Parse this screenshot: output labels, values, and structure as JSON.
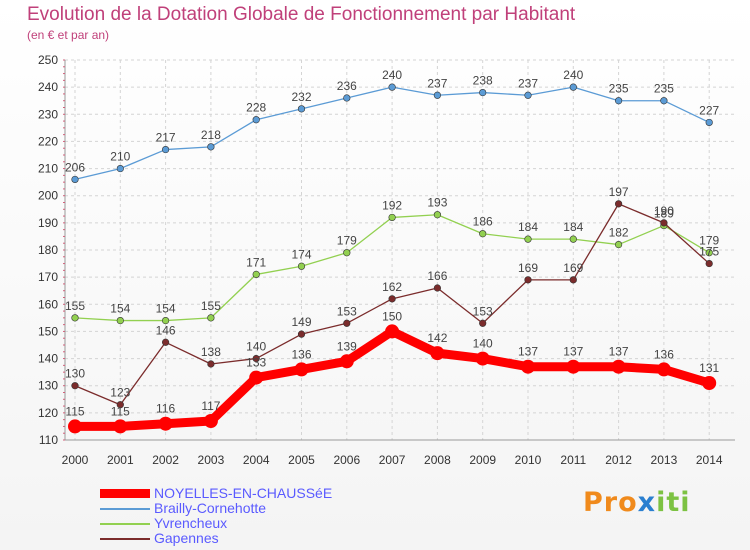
{
  "title": "Evolution de la Dotation Globale de Fonctionnement par Habitant",
  "subtitle": "(en € et par an)",
  "logo": {
    "p1": "Pro",
    "p2": "x",
    "p3": "iti"
  },
  "colors": {
    "text": "#c0407a",
    "grid": "#d0d0d0",
    "legend_text": "#5a5aff"
  },
  "chart_data": {
    "type": "line",
    "x": [
      "2000",
      "2001",
      "2002",
      "2003",
      "2004",
      "2005",
      "2006",
      "2007",
      "2008",
      "2009",
      "2010",
      "2011",
      "2012",
      "2013",
      "2014"
    ],
    "ylim": [
      110,
      250
    ],
    "yticks": [
      110,
      120,
      130,
      140,
      150,
      160,
      170,
      180,
      190,
      200,
      210,
      220,
      230,
      240,
      250
    ],
    "grid": true,
    "legend_position": "bottom-left",
    "series": [
      {
        "name": "NOYELLES-EN-CHAUSSéE",
        "color": "#ff0000",
        "values": [
          115,
          115,
          116,
          117,
          133,
          136,
          139,
          150,
          142,
          140,
          137,
          137,
          137,
          136,
          131
        ]
      },
      {
        "name": "Brailly-Cornehotte",
        "color": "#5b9bd5",
        "values": [
          206,
          210,
          217,
          218,
          228,
          232,
          236,
          240,
          237,
          238,
          237,
          240,
          235,
          235,
          227
        ]
      },
      {
        "name": "Yvrencheux",
        "color": "#92d050",
        "values": [
          155,
          154,
          154,
          155,
          171,
          174,
          179,
          192,
          193,
          186,
          184,
          184,
          182,
          189,
          179
        ]
      },
      {
        "name": "Gapennes",
        "color": "#7b2c2c",
        "values": [
          130,
          123,
          146,
          138,
          140,
          149,
          153,
          162,
          166,
          153,
          169,
          169,
          197,
          190,
          175
        ]
      }
    ]
  }
}
